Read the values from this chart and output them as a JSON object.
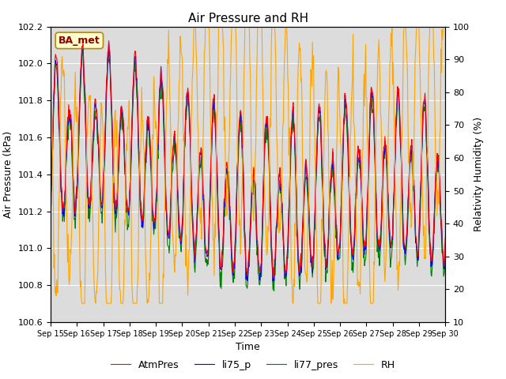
{
  "title": "Air Pressure and RH",
  "xlabel": "Time",
  "ylabel_left": "Air Pressure (kPa)",
  "ylabel_right": "Relativity Humidity (%)",
  "annotation": "BA_met",
  "ylim_left": [
    100.6,
    102.2
  ],
  "ylim_right": [
    10,
    100
  ],
  "yticks_left": [
    100.6,
    100.8,
    101.0,
    101.2,
    101.4,
    101.6,
    101.8,
    102.0,
    102.2
  ],
  "yticks_right": [
    10,
    20,
    30,
    40,
    50,
    60,
    70,
    80,
    90,
    100
  ],
  "xtick_labels": [
    "Sep 15",
    "Sep 16",
    "Sep 17",
    "Sep 18",
    "Sep 19",
    "Sep 20",
    "Sep 21",
    "Sep 22",
    "Sep 23",
    "Sep 24",
    "Sep 25",
    "Sep 26",
    "Sep 27",
    "Sep 28",
    "Sep 29",
    "Sep 30"
  ],
  "legend_labels": [
    "AtmPres",
    "li75_p",
    "li77_pres",
    "RH"
  ],
  "colors": [
    "red",
    "blue",
    "green",
    "orange"
  ],
  "background_color": "#dcdcdc",
  "linewidth": 0.8,
  "n_days": 15,
  "pts_per_day": 48
}
